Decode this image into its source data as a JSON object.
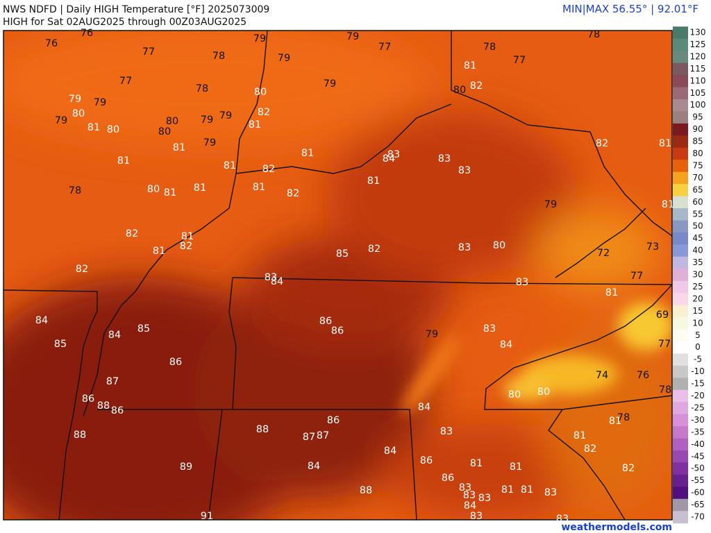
{
  "header": {
    "title": "NWS NDFD | Daily HIGH Temperature [°F]  2025073009",
    "subtitle": "HIGH for Sat 02AUG2025 through 00Z03AUG2025",
    "minmax": "MIN|MAX 56.55°  |  92.01°F"
  },
  "footer": "weathermodels.com",
  "map": {
    "labels": [
      76,
      76,
      77,
      78,
      79,
      79,
      79,
      77,
      78,
      78,
      81,
      77,
      77,
      78,
      80,
      79,
      80,
      82,
      79,
      79,
      80,
      82,
      79,
      80,
      79,
      79,
      81,
      81,
      80,
      80,
      81,
      79,
      81,
      83,
      84,
      83,
      82,
      81,
      81,
      81,
      82,
      83,
      81,
      78,
      80,
      81,
      81,
      81,
      82,
      79,
      81,
      82,
      81,
      82,
      81,
      85,
      82,
      83,
      80,
      72,
      73,
      82,
      83,
      84,
      83,
      77,
      81,
      84,
      86,
      86,
      69,
      85,
      84,
      79,
      83,
      85,
      84,
      77,
      86,
      74,
      76,
      87,
      80,
      80,
      78,
      86,
      88,
      86,
      84,
      86,
      81,
      78,
      88,
      88,
      87,
      87,
      83,
      81,
      82,
      84,
      86,
      81,
      81,
      89,
      84,
      82,
      86,
      83,
      88,
      81,
      81,
      83,
      83,
      83,
      84,
      91,
      83,
      83
    ]
  },
  "colorbar": {
    "ticks": [
      130,
      125,
      120,
      115,
      110,
      105,
      100,
      95,
      90,
      85,
      80,
      75,
      70,
      65,
      60,
      55,
      50,
      45,
      40,
      35,
      30,
      25,
      20,
      15,
      10,
      5,
      0,
      -5,
      -10,
      -15,
      -20,
      -25,
      -30,
      -35,
      -40,
      -45,
      -50,
      -55,
      -60,
      -65,
      -70
    ],
    "colors": [
      "#4a7a6a",
      "#5a8a7a",
      "#6a8a80",
      "#7a5a60",
      "#8a4a58",
      "#9a6a78",
      "#a88a90",
      "#9a8080",
      "#7a1a20",
      "#9a2a10",
      "#c83a10",
      "#e8600a",
      "#f8a020",
      "#f8d040",
      "#d8e0d0",
      "#a8b8c8",
      "#8898c0",
      "#7888c8",
      "#8898d8",
      "#c0b8e0",
      "#e0b0d8",
      "#f0c8e8",
      "#f8d8e8",
      "#f8f0d0",
      "#f8f8e0",
      "#fcfcf0",
      "#ffffff",
      "#e0e0e0",
      "#c8c8c8",
      "#b0b0b0",
      "#e8c0e8",
      "#e0a8e0",
      "#d890d8",
      "#c878c8",
      "#b060c0",
      "#9848b0",
      "#8030a0",
      "#682090",
      "#501080",
      "#a098a8",
      "#c8c0d0"
    ]
  }
}
